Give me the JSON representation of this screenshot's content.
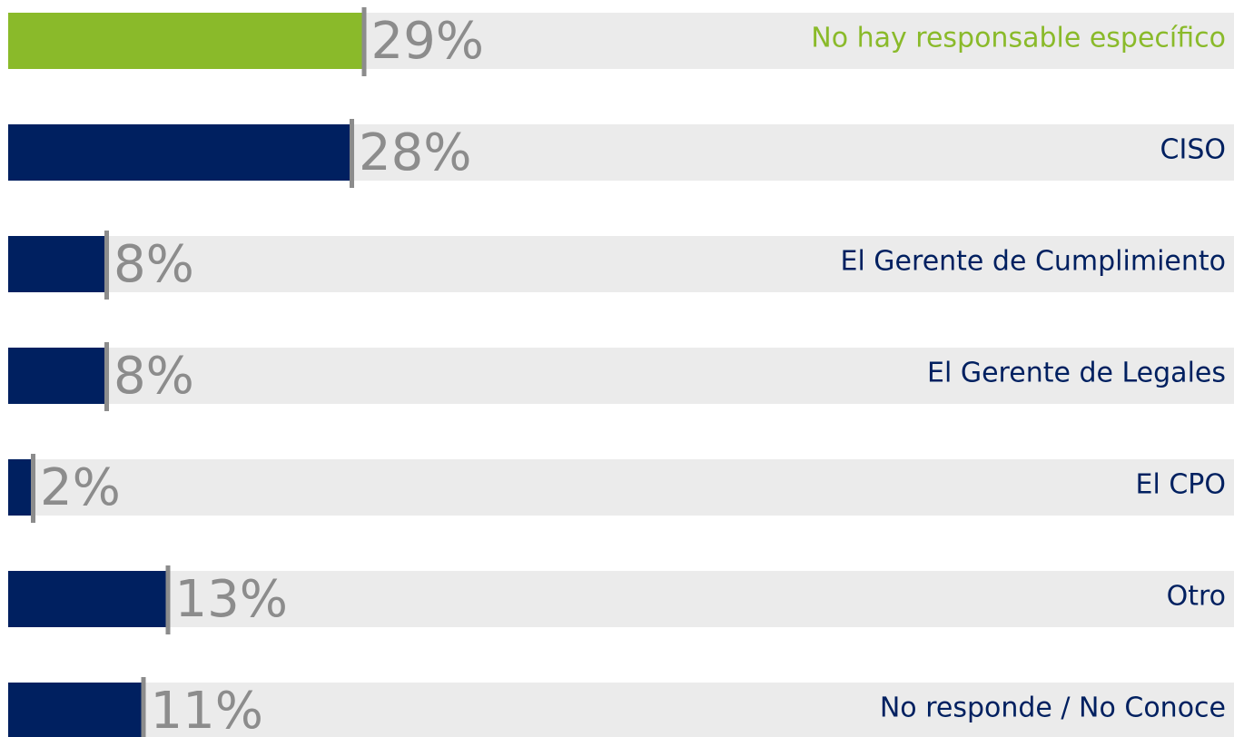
{
  "chart_data": {
    "type": "barh",
    "categories": [
      "No hay responsable específico",
      "CISO",
      "El Gerente de Cumplimiento",
      "El Gerente de Legales",
      "El CPO",
      "Otro",
      "No responde / No Conoce"
    ],
    "values": [
      29,
      28,
      8,
      8,
      2,
      13,
      11
    ],
    "value_labels": [
      "29%",
      "28%",
      "8%",
      "8%",
      "2%",
      "13%",
      "11%"
    ],
    "colors": [
      "#8aba2a",
      "#002060",
      "#002060",
      "#002060",
      "#002060",
      "#002060",
      "#002060"
    ],
    "xlim": [
      0,
      100
    ]
  }
}
